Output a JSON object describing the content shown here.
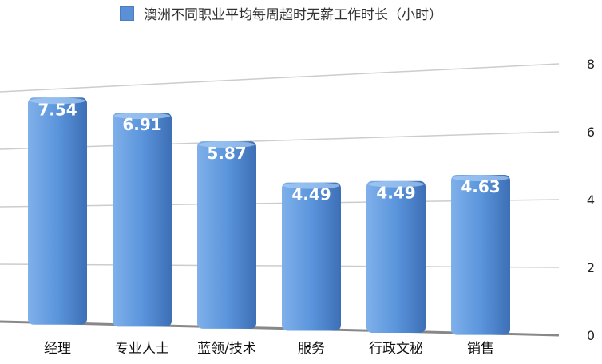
{
  "chart_data": {
    "type": "bar",
    "title": "",
    "categories": [
      "经理",
      "专业人士",
      "蓝领/技术",
      "服务",
      "行政文秘",
      "销售"
    ],
    "series": [
      {
        "name": "澳洲不同职业平均每周超时无薪工作时长（小时）",
        "values": [
          7.54,
          6.91,
          5.87,
          4.49,
          4.49,
          4.63
        ]
      }
    ],
    "yticks": [
      0,
      2,
      4,
      6,
      8
    ],
    "ylim": [
      0,
      8
    ],
    "grid": true,
    "legend_position": "top",
    "bar_color": "#5b8fd6",
    "data_labels": true,
    "style": "3d"
  }
}
